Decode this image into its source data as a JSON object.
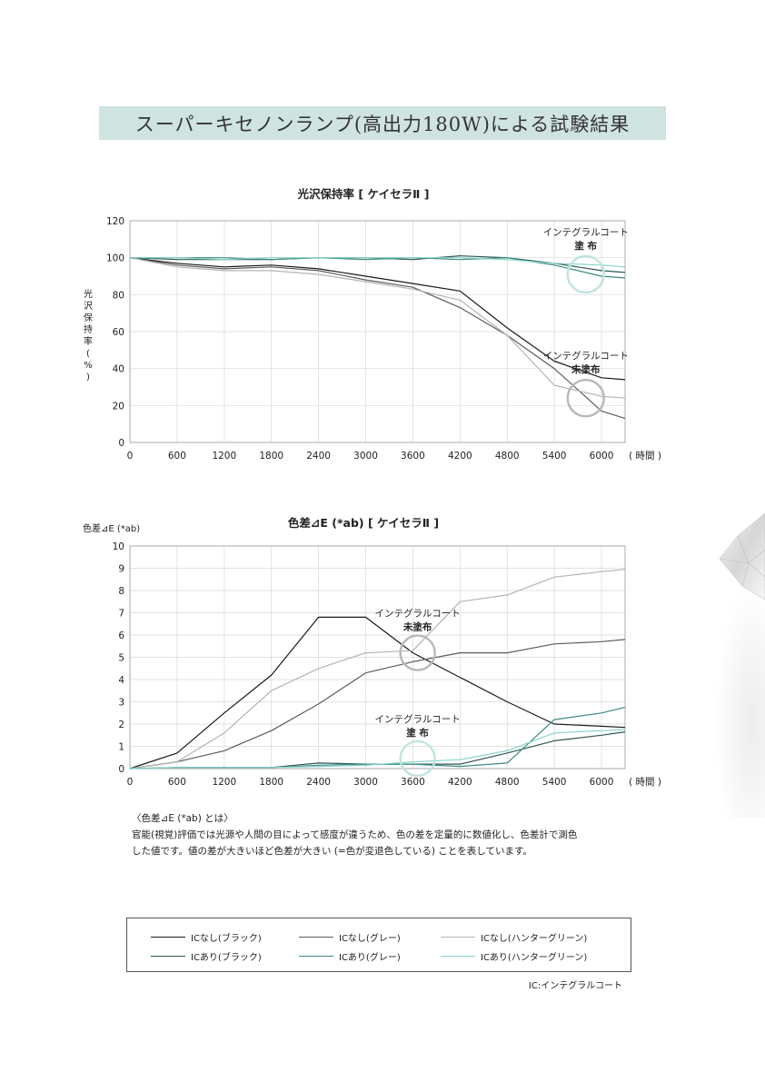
{
  "banner": {
    "title": "スーパーキセノンランプ(高出力180W)による試験結果"
  },
  "chart_data": [
    {
      "type": "line",
      "title": "光沢保持率 [ ケイセラⅡ ]",
      "ylabel": "光沢保持率(%)",
      "xlabel": "( 時間 )",
      "x": [
        0,
        600,
        1200,
        1800,
        2400,
        3000,
        3600,
        4200,
        4800,
        5400,
        6000,
        6300
      ],
      "xticks": [
        "0",
        "600",
        "1200",
        "1800",
        "2400",
        "3000",
        "3600",
        "4200",
        "4800",
        "5400",
        "6000"
      ],
      "yticks": [
        "0",
        "20",
        "40",
        "60",
        "80",
        "100",
        "120"
      ],
      "xlim": [
        0,
        6300
      ],
      "ylim": [
        0,
        120
      ],
      "grid": true,
      "series": [
        {
          "name": "ICなし(ブラック)",
          "color": "#1a1a1a",
          "values": [
            100,
            97,
            95,
            96,
            94,
            90,
            86,
            82,
            62,
            44,
            35,
            34
          ]
        },
        {
          "name": "ICなし(グレー)",
          "color": "#5c5c5c",
          "values": [
            100,
            96,
            94,
            95,
            93,
            88,
            84,
            73,
            58,
            40,
            17,
            13
          ]
        },
        {
          "name": "ICなし(ハンターグリーン)",
          "color": "#b4b4b4",
          "values": [
            100,
            95,
            93,
            93,
            91,
            87,
            83,
            77,
            58,
            31,
            25,
            24
          ]
        },
        {
          "name": "ICあり(ブラック)",
          "color": "#2f5752",
          "values": [
            100,
            99,
            99,
            99,
            100,
            100,
            99,
            101,
            100,
            97,
            93,
            92
          ]
        },
        {
          "name": "ICあり(グレー)",
          "color": "#3a8b84",
          "values": [
            100,
            100,
            100,
            99,
            100,
            99,
            100,
            99,
            100,
            96,
            90,
            89
          ]
        },
        {
          "name": "ICあり(ハンターグリーン)",
          "color": "#86d4cb",
          "values": [
            100,
            100,
            99,
            100,
            100,
            100,
            100,
            100,
            99,
            97,
            96,
            95
          ]
        }
      ],
      "annotations": [
        {
          "line1": "インテグラルコート",
          "line2": "塗 布",
          "x": 5800,
          "y": 91,
          "ring_color": "#bfe4df"
        },
        {
          "line1": "インテグラルコート",
          "line2": "未塗布",
          "x": 5800,
          "y": 24,
          "ring_color": "#b8b8b8"
        }
      ]
    },
    {
      "type": "line",
      "title": "色差⊿E (*ab)   [ ケイセラⅡ ]",
      "ylabel": "色差⊿E (*ab)",
      "xlabel": "( 時間 )",
      "x": [
        0,
        600,
        1200,
        1800,
        2400,
        3000,
        3600,
        4200,
        4800,
        5400,
        6000,
        6300
      ],
      "xticks": [
        "0",
        "600",
        "1200",
        "1800",
        "2400",
        "3000",
        "3600",
        "4200",
        "4800",
        "5400",
        "6000"
      ],
      "yticks": [
        "0",
        "1",
        "2",
        "3",
        "4",
        "5",
        "6",
        "7",
        "8",
        "9",
        "10"
      ],
      "xlim": [
        0,
        6300
      ],
      "ylim": [
        0,
        10
      ],
      "grid": true,
      "series": [
        {
          "name": "ICなし(ブラック)",
          "color": "#1a1a1a",
          "values": [
            0,
            0.7,
            2.5,
            4.2,
            6.8,
            6.8,
            5.2,
            4.1,
            3.0,
            2.0,
            1.9,
            1.85
          ]
        },
        {
          "name": "ICなし(グレー)",
          "color": "#5c5c5c",
          "values": [
            0,
            0.3,
            0.8,
            1.7,
            2.9,
            4.3,
            4.8,
            5.2,
            5.2,
            5.6,
            5.7,
            5.8
          ]
        },
        {
          "name": "ICなし(ハンターグリーン)",
          "color": "#b4b4b4",
          "values": [
            0,
            0.3,
            1.6,
            3.5,
            4.5,
            5.2,
            5.3,
            7.5,
            7.8,
            8.6,
            8.85,
            8.95
          ]
        },
        {
          "name": "ICあり(ブラック)",
          "color": "#2f5752",
          "values": [
            0,
            0.05,
            0.05,
            0.05,
            0.25,
            0.2,
            0.2,
            0.2,
            0.7,
            1.25,
            1.5,
            1.65
          ]
        },
        {
          "name": "ICあり(グレー)",
          "color": "#3a8b84",
          "values": [
            0,
            0.05,
            0.05,
            0.05,
            0.15,
            0.2,
            0.2,
            0.1,
            0.25,
            2.2,
            2.5,
            2.75
          ]
        },
        {
          "name": "ICあり(ハンターグリーン)",
          "color": "#86d4cb",
          "values": [
            0,
            0.05,
            0.05,
            0.05,
            0.1,
            0.15,
            0.3,
            0.4,
            0.8,
            1.6,
            1.7,
            1.75
          ]
        }
      ],
      "annotations": [
        {
          "line1": "インテグラルコート",
          "line2": "未塗布",
          "x": 3660,
          "y": 5.2,
          "ring_color": "#b8b8b8"
        },
        {
          "line1": "インテグラルコート",
          "line2": "塗 布",
          "x": 3660,
          "y": 0.45,
          "ring_color": "#bfe4df"
        }
      ]
    }
  ],
  "note": {
    "heading": "〈色差⊿E (*ab) とは〉",
    "line1": "官能(視覚)評価では光源や人間の目によって感度が違うため、色の差を定量的に数値化し、色差計で測色",
    "line2": "した値です。値の差が大きいほど色差が大きい (=色が変退色している) ことを表しています。"
  },
  "legend": [
    {
      "label": "ICなし(ブラック)",
      "color": "#1a1a1a"
    },
    {
      "label": "ICなし(グレー)",
      "color": "#5c5c5c"
    },
    {
      "label": "ICなし(ハンターグリーン)",
      "color": "#b4b4b4"
    },
    {
      "label": "ICあり(ブラック)",
      "color": "#2f5752"
    },
    {
      "label": "ICあり(グレー)",
      "color": "#3a8b84"
    },
    {
      "label": "ICあり(ハンターグリーン)",
      "color": "#86d4cb"
    }
  ],
  "footnote": "IC:インテグラルコート"
}
